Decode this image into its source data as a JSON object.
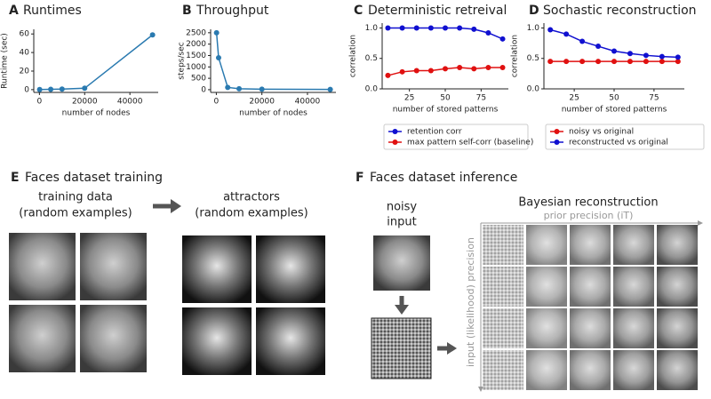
{
  "chart_data": [
    {
      "type": "line",
      "panel": "A",
      "title": "Runtimes",
      "x_label": "number of nodes",
      "y_label": "Runtime (sec)",
      "x": [
        100,
        5000,
        10000,
        20000,
        50000
      ],
      "series": [
        {
          "color": "#2a7ab0",
          "values": [
            0.1,
            0.3,
            0.6,
            1.5,
            59
          ]
        }
      ],
      "xlim": [
        -2500,
        52500
      ],
      "ylim": [
        -3,
        65
      ],
      "xticks": [
        0,
        20000,
        40000
      ],
      "yticks": [
        0,
        20,
        40,
        60
      ]
    },
    {
      "type": "line",
      "panel": "B",
      "title": "Throughput",
      "x_label": "number of nodes",
      "y_label": "steps/sec",
      "x": [
        100,
        1000,
        5000,
        10000,
        20000,
        50000
      ],
      "series": [
        {
          "color": "#2a7ab0",
          "values": [
            2500,
            1400,
            100,
            40,
            20,
            10
          ]
        }
      ],
      "xlim": [
        -2500,
        52500
      ],
      "ylim": [
        -120,
        2650
      ],
      "xticks": [
        0,
        20000,
        40000
      ],
      "yticks": [
        0,
        500,
        1000,
        1500,
        2000,
        2500
      ]
    },
    {
      "type": "line",
      "panel": "C",
      "title": "Deterministic retreival",
      "x_label": "number of stored patterns",
      "y_label": "correlation",
      "x": [
        10,
        20,
        30,
        40,
        50,
        60,
        70,
        80,
        90
      ],
      "series": [
        {
          "name": "retention corr",
          "color": "#1010d0",
          "values": [
            1,
            1,
            1,
            1,
            1,
            1,
            0.98,
            0.92,
            0.82
          ]
        },
        {
          "name": "max pattern self-corr (baseline)",
          "color": "#e01010",
          "values": [
            0.22,
            0.28,
            0.3,
            0.3,
            0.33,
            0.35,
            0.33,
            0.35,
            0.35
          ]
        }
      ],
      "xlim": [
        6,
        94
      ],
      "ylim": [
        0,
        1.08
      ],
      "xticks": [
        25,
        50,
        75
      ],
      "yticks": [
        {
          "value": 0,
          "label": "0.0"
        },
        0.5,
        {
          "value": 1,
          "label": "1.0"
        }
      ],
      "legend": "below"
    },
    {
      "type": "line",
      "panel": "D",
      "title": "Sochastic reconstruction",
      "x_label": "number of stored patterns",
      "y_label": "correlation",
      "x": [
        10,
        20,
        30,
        40,
        50,
        60,
        70,
        80,
        90
      ],
      "series": [
        {
          "name": "noisy vs original",
          "color": "#e01010",
          "values": [
            0.45,
            0.45,
            0.45,
            0.45,
            0.45,
            0.45,
            0.45,
            0.45,
            0.45
          ]
        },
        {
          "name": "reconstructed vs original",
          "color": "#1010d0",
          "values": [
            0.97,
            0.9,
            0.78,
            0.7,
            0.62,
            0.58,
            0.55,
            0.53,
            0.52
          ]
        }
      ],
      "xlim": [
        6,
        94
      ],
      "ylim": [
        0,
        1.08
      ],
      "xticks": [
        25,
        50,
        75
      ],
      "yticks": [
        {
          "value": 0,
          "label": "0.0"
        },
        0.5,
        {
          "value": 1,
          "label": "1.0"
        }
      ],
      "legend": "below"
    }
  ],
  "panel_e": {
    "letter": "E",
    "title": "Faces dataset training",
    "left_heading": [
      "training data",
      "(random examples)"
    ],
    "right_heading": [
      "attractors",
      "(random examples)"
    ]
  },
  "panel_f": {
    "letter": "F",
    "title": "Faces dataset inference",
    "input_heading": [
      "noisy",
      "input"
    ],
    "grid_title": "Bayesian reconstruction",
    "x_axis": "prior precision (iT)",
    "y_axis": "input (likelihood) precision"
  }
}
